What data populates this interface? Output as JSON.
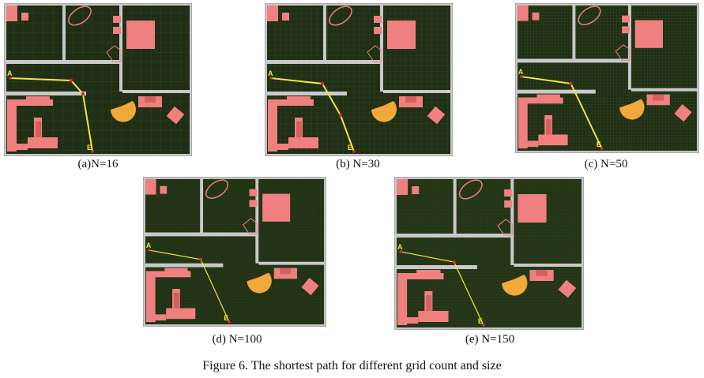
{
  "figure": {
    "caption": "Figure 6. The shortest path for different grid count and size"
  },
  "colors": {
    "floor": "#1f2e14",
    "grid": "#3f5a2a",
    "wall": "#c9c9c9",
    "frame": "#a8a8a8",
    "furniture": "#f08080",
    "furniture_dark": "#d46060",
    "accent": "#f2a83a",
    "path": "#f5e63a",
    "waypoint": "#d62a2a",
    "marker_text": "#f5e63a"
  },
  "markers": {
    "start": "A",
    "end": "E"
  },
  "panels": [
    {
      "id": "a",
      "caption": "(a)N=16",
      "grid_count": 16,
      "waypoints": 3
    },
    {
      "id": "b",
      "caption": "(b) N=30",
      "grid_count": 30,
      "waypoints": 3
    },
    {
      "id": "c",
      "caption": "(c) N=50",
      "grid_count": 50,
      "waypoints": 2
    },
    {
      "id": "d",
      "caption": "(d) N=100",
      "grid_count": 100,
      "waypoints": 1
    },
    {
      "id": "e",
      "caption": "(e) N=150",
      "grid_count": 150,
      "waypoints": 1
    }
  ]
}
